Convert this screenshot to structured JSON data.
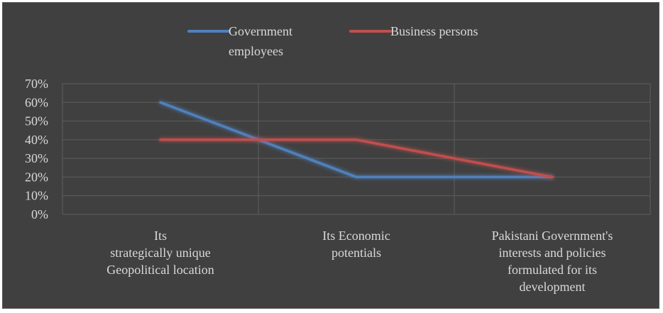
{
  "chart_data": {
    "type": "line",
    "title": "",
    "xlabel": "",
    "ylabel": "",
    "categories": [
      [
        "Its",
        "strategically unique",
        "Geopolitical location"
      ],
      [
        "Its Economic",
        "potentials"
      ],
      [
        "Pakistani Government's",
        "interests and policies",
        "formulated for its",
        "development"
      ]
    ],
    "series": [
      {
        "name": "Government employees",
        "name_lines": [
          "Government",
          "employees"
        ],
        "values": [
          60,
          20,
          20
        ],
        "color": "#4f81bd"
      },
      {
        "name": "Business persons",
        "name_lines": [
          "Business persons"
        ],
        "values": [
          40,
          40,
          20
        ],
        "color": "#c0504d"
      }
    ],
    "ylim": [
      0,
      70
    ],
    "y_ticks": [
      "0%",
      "10%",
      "20%",
      "30%",
      "40%",
      "50%",
      "60%",
      "70%"
    ],
    "legend_position": "top",
    "grid": true,
    "colors": {
      "background": "#404040",
      "grid": "#5e5e5e",
      "text": "#d9d9d9"
    }
  }
}
